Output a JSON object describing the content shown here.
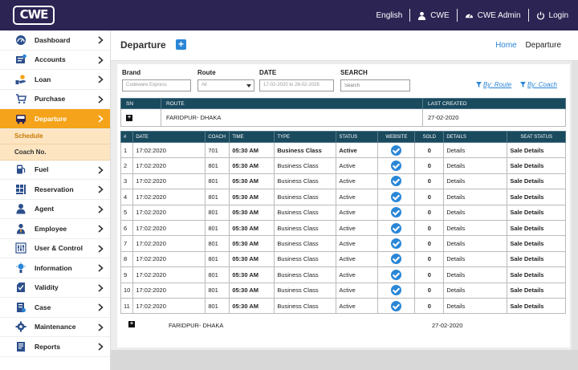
{
  "brand": {
    "logo_text": "CWE"
  },
  "topnav": {
    "language": "English",
    "org": "CWE",
    "user": "CWE Admin",
    "login": "Login"
  },
  "sidebar": {
    "items": [
      {
        "label": "Dashboard",
        "icon": "dashboard-icon"
      },
      {
        "label": "Accounts",
        "icon": "accounts-icon"
      },
      {
        "label": "Loan",
        "icon": "loan-icon"
      },
      {
        "label": "Purchase",
        "icon": "purchase-icon"
      },
      {
        "label": "Departure",
        "icon": "departure-icon",
        "active": true
      },
      {
        "label": "Fuel",
        "icon": "fuel-icon"
      },
      {
        "label": "Reservation",
        "icon": "reservation-icon"
      },
      {
        "label": "Agent",
        "icon": "agent-icon"
      },
      {
        "label": "Employee",
        "icon": "employee-icon"
      },
      {
        "label": "User & Control",
        "icon": "user-control-icon"
      },
      {
        "label": "Information",
        "icon": "information-icon"
      },
      {
        "label": "Validity",
        "icon": "validity-icon"
      },
      {
        "label": "Case",
        "icon": "case-icon"
      },
      {
        "label": "Maintenance",
        "icon": "maintenance-icon"
      },
      {
        "label": "Reports",
        "icon": "reports-icon"
      }
    ],
    "submenu": [
      {
        "label": "Schedule"
      },
      {
        "label": "Coach No."
      }
    ]
  },
  "header": {
    "title": "Departure",
    "breadcrumb_home": "Home",
    "breadcrumb_current": "Departure"
  },
  "filters": {
    "brand_label": "Brand",
    "brand_value": "Codeware Express",
    "route_label": "Route",
    "route_value": "All",
    "date_label": "DATE",
    "date_value": "17-02-2020 to 28-02-2028",
    "search_label": "SEARCH",
    "search_placeholder": "Search",
    "by_route": "By: Route",
    "by_coach": "By: Coach"
  },
  "route_table": {
    "headers": [
      "SN",
      "ROUTE",
      "LAST CREATED"
    ],
    "row": {
      "route": "FARIDPUR- DHAKA",
      "last_created": "27-02-2020"
    }
  },
  "trip_table": {
    "headers": [
      "#",
      "DATE",
      "COACH",
      "TIME",
      "TYPE",
      "STATUS",
      "WEBSITE",
      "SOLD",
      "DETAILS",
      "SEAT STATUS"
    ],
    "rows": [
      {
        "n": "1",
        "date": "17:02:2020",
        "coach": "701",
        "time": "05:30 AM",
        "type": "Business Class",
        "status": "Active",
        "sold": "0",
        "details": "Details",
        "seat": "Sale Details"
      },
      {
        "n": "2",
        "date": "17:02:2020",
        "coach": "801",
        "time": "05:30 AM",
        "type": "Business Class",
        "status": "Active",
        "sold": "0",
        "details": "Details",
        "seat": "Sale Details"
      },
      {
        "n": "3",
        "date": "17:02:2020",
        "coach": "801",
        "time": "05:30 AM",
        "type": "Business Class",
        "status": "Active",
        "sold": "0",
        "details": "Details",
        "seat": "Sale Details"
      },
      {
        "n": "4",
        "date": "17:02:2020",
        "coach": "801",
        "time": "05:30 AM",
        "type": "Business Class",
        "status": "Active",
        "sold": "0",
        "details": "Details",
        "seat": "Sale Details"
      },
      {
        "n": "5",
        "date": "17:02:2020",
        "coach": "801",
        "time": "05:30 AM",
        "type": "Business Class",
        "status": "Active",
        "sold": "0",
        "details": "Details",
        "seat": "Sale Details"
      },
      {
        "n": "6",
        "date": "17:02:2020",
        "coach": "801",
        "time": "05:30 AM",
        "type": "Business Class",
        "status": "Active",
        "sold": "0",
        "details": "Details",
        "seat": "Sale Details"
      },
      {
        "n": "7",
        "date": "17:02:2020",
        "coach": "801",
        "time": "05:30 AM",
        "type": "Business Class",
        "status": "Active",
        "sold": "0",
        "details": "Details",
        "seat": "Sale Details"
      },
      {
        "n": "8",
        "date": "17:02:2020",
        "coach": "801",
        "time": "05:30 AM",
        "type": "Business Class",
        "status": "Active",
        "sold": "0",
        "details": "Details",
        "seat": "Sale Details"
      },
      {
        "n": "9",
        "date": "17:02:2020",
        "coach": "801",
        "time": "05:30 AM",
        "type": "Business Class",
        "status": "Active",
        "sold": "0",
        "details": "Details",
        "seat": "Sale Details"
      },
      {
        "n": "10",
        "date": "17:02:2020",
        "coach": "801",
        "time": "05:30 AM",
        "type": "Business Class",
        "status": "Active",
        "sold": "0",
        "details": "Details",
        "seat": "Sale Details"
      },
      {
        "n": "11",
        "date": "17:02:2020",
        "coach": "801",
        "time": "05:30 AM",
        "type": "Business Class",
        "status": "Active",
        "sold": "0",
        "details": "Details",
        "seat": "Sale Details"
      }
    ]
  },
  "footer_row": {
    "route": "FARIDPUR- DHAKA",
    "date": "27-02-2020"
  },
  "colors": {
    "topbar": "#2c2453",
    "accent": "#f5a31a",
    "table_header": "#1a4a5e",
    "link": "#2a86d6"
  }
}
